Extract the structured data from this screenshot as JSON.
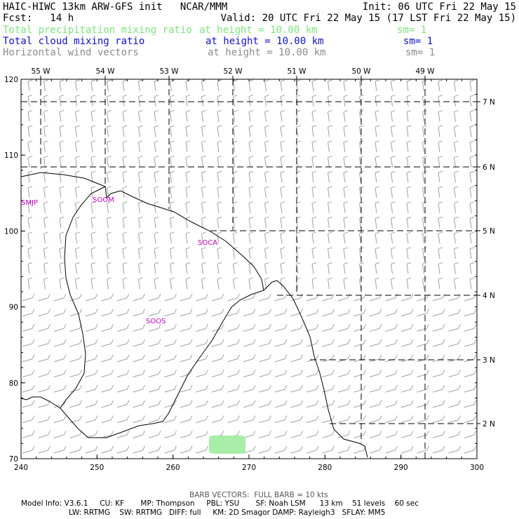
{
  "header": {
    "title": "HAIC-HIWC 13km ARW-GFS init   NCAR/MMM",
    "init": "Init: 06 UTC Fri 22 May 15",
    "fcst": "Fcst:   14 h",
    "valid": "Valid: 20 UTC Fri 22 May 15 (17 LST Fri 22 May 15)",
    "fields": [
      {
        "name": "Total precipitation mixing ratio",
        "level": "at height = 10.00 km",
        "sm": "sm= 1",
        "color": "#7fe27f"
      },
      {
        "name": "Total cloud mixing ratio",
        "level": "at height = 10.00 km",
        "sm": "sm= 1",
        "color": "#1010c8"
      },
      {
        "name": "Horizontal wind vectors",
        "level": "at height = 10.00 km",
        "sm": "sm= 1",
        "color": "#8c8c8c"
      }
    ]
  },
  "map": {
    "x_ticks": [
      240,
      250,
      260,
      270,
      280,
      290,
      300
    ],
    "y_ticks": [
      70,
      80,
      90,
      100,
      110,
      120
    ],
    "lon_labels": [
      "55 W",
      "54 W",
      "53 W",
      "52 W",
      "51 W",
      "50 W",
      "49 W"
    ],
    "lat_labels": [
      "7 N",
      "6 N",
      "5 N",
      "4 N",
      "3 N",
      "2 N"
    ],
    "stations": [
      "SMJP",
      "SOCA",
      "SOOM",
      "SOOS"
    ],
    "station_color": "#c000c0",
    "precip_color": "#a8eea8"
  },
  "footer": {
    "barb_note": "BARB VECTORS:  FULL BARB = 10 kts",
    "model_line1": "Model Info: V3.6.1     CU: KF       MP: Thompson     PBL: YSU       SF: Noah LSM      13 km    51 levels    60 sec",
    "model_line2": "LW: RRTMG    SW: RRTMG   DIFF: full     KM: 2D Smagor DAMP: Rayleigh3   SFLAY: MM5"
  }
}
